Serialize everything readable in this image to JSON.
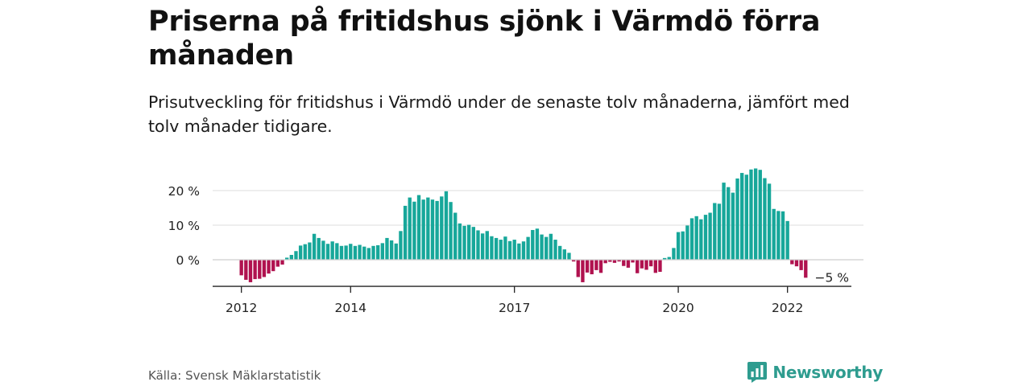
{
  "title": "Priserna på fritidshus sjönk i Värmdö förra månaden",
  "subtitle": "Prisutveckling för fritidshus i Värmdö under de senaste tolv månaderna, jämfört med tolv månader tidigare.",
  "source": "Källa: Svensk Mäklarstatistik",
  "brand": "Newsworthy",
  "colors": {
    "positive": "#17a79a",
    "negative": "#b0124f",
    "grid": "#dddddd",
    "axis": "#222222"
  },
  "chart_data": {
    "type": "bar",
    "title": "Priserna på fritidshus sjönk i Värmdö förra månaden",
    "subtitle": "Prisutveckling för fritidshus i Värmdö under de senaste tolv månaderna, jämfört med tolv månader tidigare.",
    "start_month": "2012-01",
    "frequency": "monthly",
    "unit": "%",
    "ylim": [
      -8,
      27
    ],
    "y_ticks": [
      {
        "value": 20,
        "label": "20 %"
      },
      {
        "value": 10,
        "label": "10 %"
      },
      {
        "value": 0,
        "label": "0 %"
      },
      {
        "value": -5,
        "label": "−5 %"
      }
    ],
    "x_ticks": [
      {
        "month": "2012-01",
        "label": "2012"
      },
      {
        "month": "2014-01",
        "label": "2014"
      },
      {
        "month": "2017-01",
        "label": "2017"
      },
      {
        "month": "2020-01",
        "label": "2020"
      },
      {
        "month": "2022-01",
        "label": "2022"
      }
    ],
    "grid": true,
    "values": [
      -4.5,
      -5.8,
      -6.5,
      -5.6,
      -5.5,
      -5.0,
      -4.0,
      -3.3,
      -2.0,
      -1.4,
      0.6,
      1.4,
      2.5,
      4.1,
      4.5,
      5.0,
      7.5,
      6.3,
      5.5,
      4.6,
      5.3,
      4.8,
      4.0,
      4.1,
      4.6,
      4.0,
      4.3,
      3.8,
      3.4,
      4.0,
      4.2,
      4.8,
      6.3,
      5.6,
      4.7,
      8.3,
      15.6,
      18.0,
      16.8,
      18.7,
      17.4,
      18.0,
      17.4,
      17.0,
      18.3,
      19.8,
      16.7,
      13.6,
      10.5,
      9.8,
      10.1,
      9.5,
      8.5,
      7.6,
      8.3,
      6.8,
      6.3,
      5.8,
      6.7,
      5.4,
      5.8,
      4.7,
      5.3,
      6.6,
      8.6,
      9.0,
      7.3,
      6.6,
      7.5,
      5.8,
      4.0,
      3.0,
      2.0,
      -0.5,
      -5.0,
      -6.5,
      -3.7,
      -4.2,
      -3.0,
      -3.8,
      -1.0,
      -0.6,
      -0.9,
      -0.5,
      -1.8,
      -2.3,
      -0.8,
      -3.9,
      -2.5,
      -2.9,
      -1.9,
      -3.8,
      -3.5,
      0.5,
      0.8,
      3.4,
      8.0,
      8.2,
      9.9,
      12.0,
      12.6,
      11.7,
      13.0,
      13.6,
      16.4,
      16.2,
      22.3,
      21.0,
      19.4,
      23.5,
      25.1,
      24.6,
      26.1,
      26.4,
      26.0,
      23.6,
      22.0,
      14.7,
      14.1,
      14.0,
      11.2,
      -1.3,
      -1.9,
      -3.0,
      -5.2
    ]
  }
}
